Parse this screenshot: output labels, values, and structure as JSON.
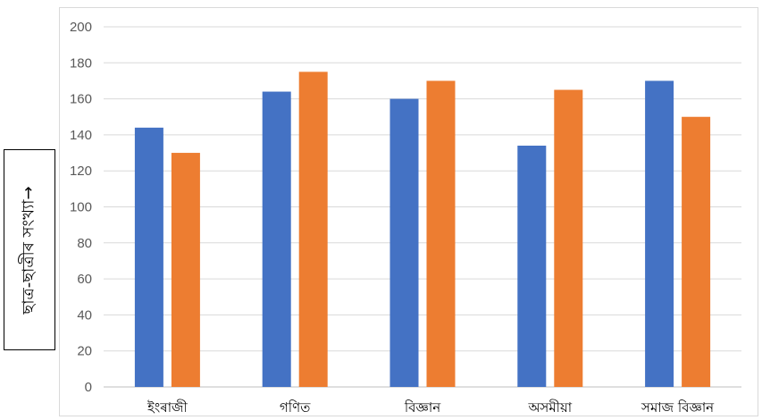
{
  "chart_data": {
    "type": "bar",
    "title": "",
    "xlabel": "",
    "ylabel": "ছাত্ৰ-ছাত্ৰীৰ সংখ্যা→",
    "categories": [
      "ইংৰাজী",
      "গণিত",
      "বিজ্ঞান",
      "অসমীয়া",
      "সমাজ বিজ্ঞান"
    ],
    "series": [
      {
        "values": [
          144,
          164,
          160,
          134,
          170
        ],
        "color": "#4472c4"
      },
      {
        "values": [
          130,
          175,
          170,
          165,
          150
        ],
        "color": "#ed7d31"
      }
    ],
    "ylim": [
      0,
      200
    ],
    "yticks": [
      0,
      20,
      40,
      60,
      80,
      100,
      120,
      140,
      160,
      180,
      200
    ],
    "grid": true,
    "legend": "none"
  }
}
